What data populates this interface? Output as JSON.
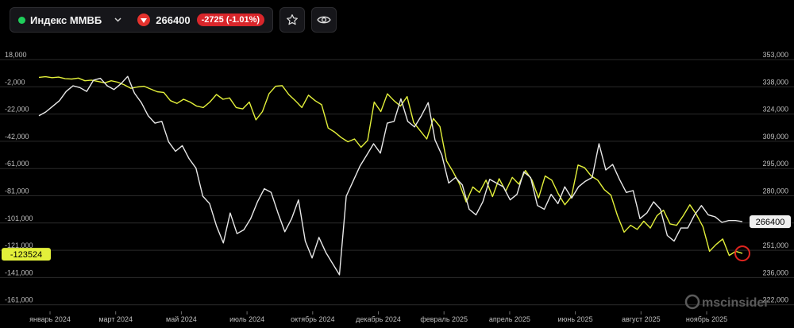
{
  "header": {
    "ticker_name": "Индекс ММВБ",
    "price": "266400",
    "change": "-2725 (-1.01%)",
    "colors": {
      "live_dot": "#1fcf5b",
      "down": "#d9262b"
    },
    "icons": [
      "chevron-down-icon",
      "arrow-down-icon",
      "star-icon",
      "eye-icon"
    ]
  },
  "watermark": "mscinsider",
  "chart_data": {
    "type": "line",
    "x_ticks": [
      "январь 2024",
      "март 2024",
      "май 2024",
      "июль 2024",
      "октябрь 2024",
      "декабрь 2024",
      "февраль 2025",
      "апрель 2025",
      "июнь 2025",
      "август 2025",
      "ноябрь 2025"
    ],
    "left_axis": {
      "ticks": [
        "18,000",
        "-2,000",
        "-22,000",
        "-42,000",
        "-61,000",
        "-81,000",
        "-101,000",
        "-121,000",
        "-141,000",
        "-161,000"
      ],
      "range": [
        -161000,
        18000
      ]
    },
    "right_axis": {
      "ticks": [
        "353,000",
        "338,000",
        "324,000",
        "309,000",
        "295,000",
        "280,000",
        "266,000",
        "251,000",
        "236,000",
        "222,000"
      ],
      "range": [
        222000,
        353000
      ]
    },
    "series": [
      {
        "axis": "left",
        "color": "#e3f03a",
        "last_label": "-123524",
        "values": [
          5000,
          5500,
          4800,
          5200,
          4000,
          3800,
          4500,
          2500,
          3000,
          2000,
          1000,
          2500,
          1500,
          -500,
          -3000,
          -2000,
          -1500,
          -3500,
          -5500,
          -6000,
          -12000,
          -14000,
          -11000,
          -13000,
          -16000,
          -17000,
          -13000,
          -7500,
          -11000,
          -10000,
          -17000,
          -18000,
          -13000,
          -26000,
          -20000,
          -7000,
          -1500,
          -1000,
          -7500,
          -12000,
          -17000,
          -8000,
          -12000,
          -15000,
          -32000,
          -35000,
          -39000,
          -42000,
          -40000,
          -46000,
          -41000,
          -13000,
          -20000,
          -7000,
          -12000,
          -16000,
          -9000,
          -28000,
          -34000,
          -40000,
          -25000,
          -31000,
          -56000,
          -64000,
          -73000,
          -86000,
          -75000,
          -79000,
          -70000,
          -82000,
          -69000,
          -78000,
          -68000,
          -73000,
          -63000,
          -70000,
          -83000,
          -67000,
          -70000,
          -80000,
          -88000,
          -82000,
          -59000,
          -61000,
          -67000,
          -70000,
          -77000,
          -81000,
          -96000,
          -108000,
          -103000,
          -106000,
          -100000,
          -105000,
          -96000,
          -92000,
          -102000,
          -103000,
          -96000,
          -88000,
          -95000,
          -104000,
          -122000,
          -117000,
          -113000,
          -125000,
          -122000,
          -123524
        ]
      },
      {
        "axis": "right",
        "color": "#e8e8e8",
        "last_label": "266400",
        "values": [
          323000,
          325000,
          328000,
          331000,
          336000,
          339000,
          338000,
          336000,
          342000,
          343000,
          339000,
          337000,
          340000,
          344000,
          335000,
          330000,
          323000,
          319000,
          320000,
          309000,
          304000,
          307000,
          300000,
          295000,
          280000,
          276000,
          264000,
          255000,
          271000,
          260000,
          262000,
          268000,
          277000,
          284000,
          282000,
          271000,
          261000,
          268000,
          278000,
          256000,
          247000,
          258000,
          250000,
          244000,
          238000,
          280000,
          288000,
          296000,
          302000,
          308000,
          303000,
          319000,
          320000,
          332000,
          320000,
          317000,
          323000,
          330000,
          310000,
          302000,
          287000,
          290000,
          286000,
          273000,
          270000,
          277000,
          289000,
          287000,
          285000,
          278000,
          281000,
          293000,
          290000,
          275000,
          273000,
          281000,
          276000,
          285000,
          279000,
          285000,
          288000,
          290000,
          308000,
          294000,
          297000,
          289000,
          282000,
          283000,
          268000,
          271000,
          277000,
          273000,
          259000,
          256000,
          263000,
          263000,
          270000,
          275000,
          270000,
          269000,
          266000,
          267000,
          267000,
          266400
        ]
      }
    ],
    "grid": true,
    "legend": "none"
  }
}
